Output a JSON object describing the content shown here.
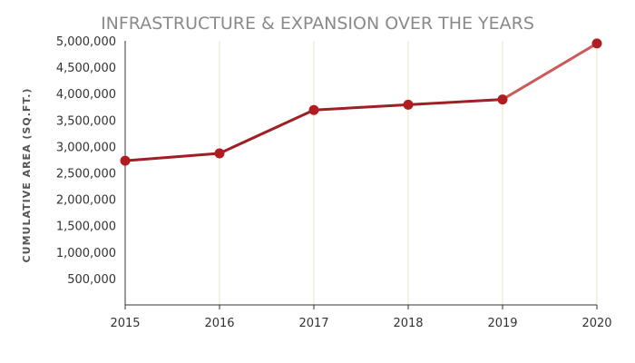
{
  "chart_data": {
    "type": "line",
    "title": "INFRASTRUCTURE & EXPANSION OVER THE YEARS",
    "xlabel": "",
    "ylabel": "CUMULATIVE AREA (SQ.FT.)",
    "categories": [
      "2015",
      "2016",
      "2017",
      "2018",
      "2019",
      "2020"
    ],
    "series": [
      {
        "values": [
          2730000,
          2870000,
          3690000,
          3790000,
          3890000,
          4950000
        ]
      }
    ],
    "ylim": [
      0,
      5000000
    ],
    "yticks": [
      500000,
      1000000,
      1500000,
      2000000,
      2500000,
      3000000,
      3500000,
      4000000,
      4500000,
      5000000
    ],
    "ytick_labels": [
      "500,000",
      "1,000,000",
      "1,500,000",
      "2,000,000",
      "2,500,000",
      "3,000,000",
      "3,500,000",
      "4,000,000",
      "4,500,000",
      "5,000,000"
    ],
    "grid": "vertical",
    "legend": "none",
    "colors": {
      "line": "#9e1f24",
      "line_projected": "#cc5a5a",
      "marker": "#b01c22",
      "grid": "#e8e4c4",
      "axis": "#333333"
    }
  }
}
